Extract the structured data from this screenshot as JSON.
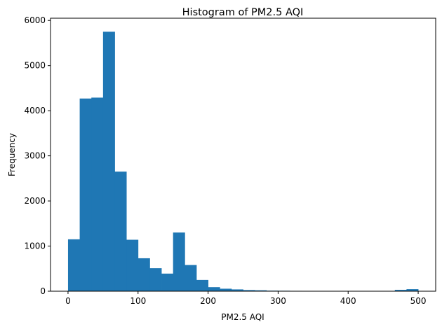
{
  "chart_data": {
    "type": "bar",
    "title": "Histogram of PM2.5 AQI",
    "xlabel": "PM2.5 AQI",
    "ylabel": "Frequency",
    "bar_color": "#1f77b4",
    "xlim": [
      -25,
      525
    ],
    "ylim": [
      0,
      6050
    ],
    "xticks": [
      0,
      100,
      200,
      300,
      400,
      500
    ],
    "yticks": [
      0,
      1000,
      2000,
      3000,
      4000,
      5000,
      6000
    ],
    "bin_edges": [
      0,
      16.67,
      33.33,
      50,
      66.67,
      83.33,
      100,
      116.67,
      133.33,
      150,
      166.67,
      183.33,
      200,
      216.67,
      233.33,
      250,
      266.67,
      283.33,
      300,
      316.67,
      333.33,
      350,
      366.67,
      383.33,
      400,
      416.67,
      433.33,
      450,
      466.67,
      483.33,
      500
    ],
    "counts": [
      1150,
      4270,
      4290,
      5750,
      2650,
      1140,
      730,
      510,
      390,
      1300,
      580,
      250,
      90,
      55,
      40,
      25,
      20,
      12,
      10,
      8,
      6,
      5,
      5,
      4,
      4,
      3,
      3,
      3,
      30,
      45
    ]
  }
}
